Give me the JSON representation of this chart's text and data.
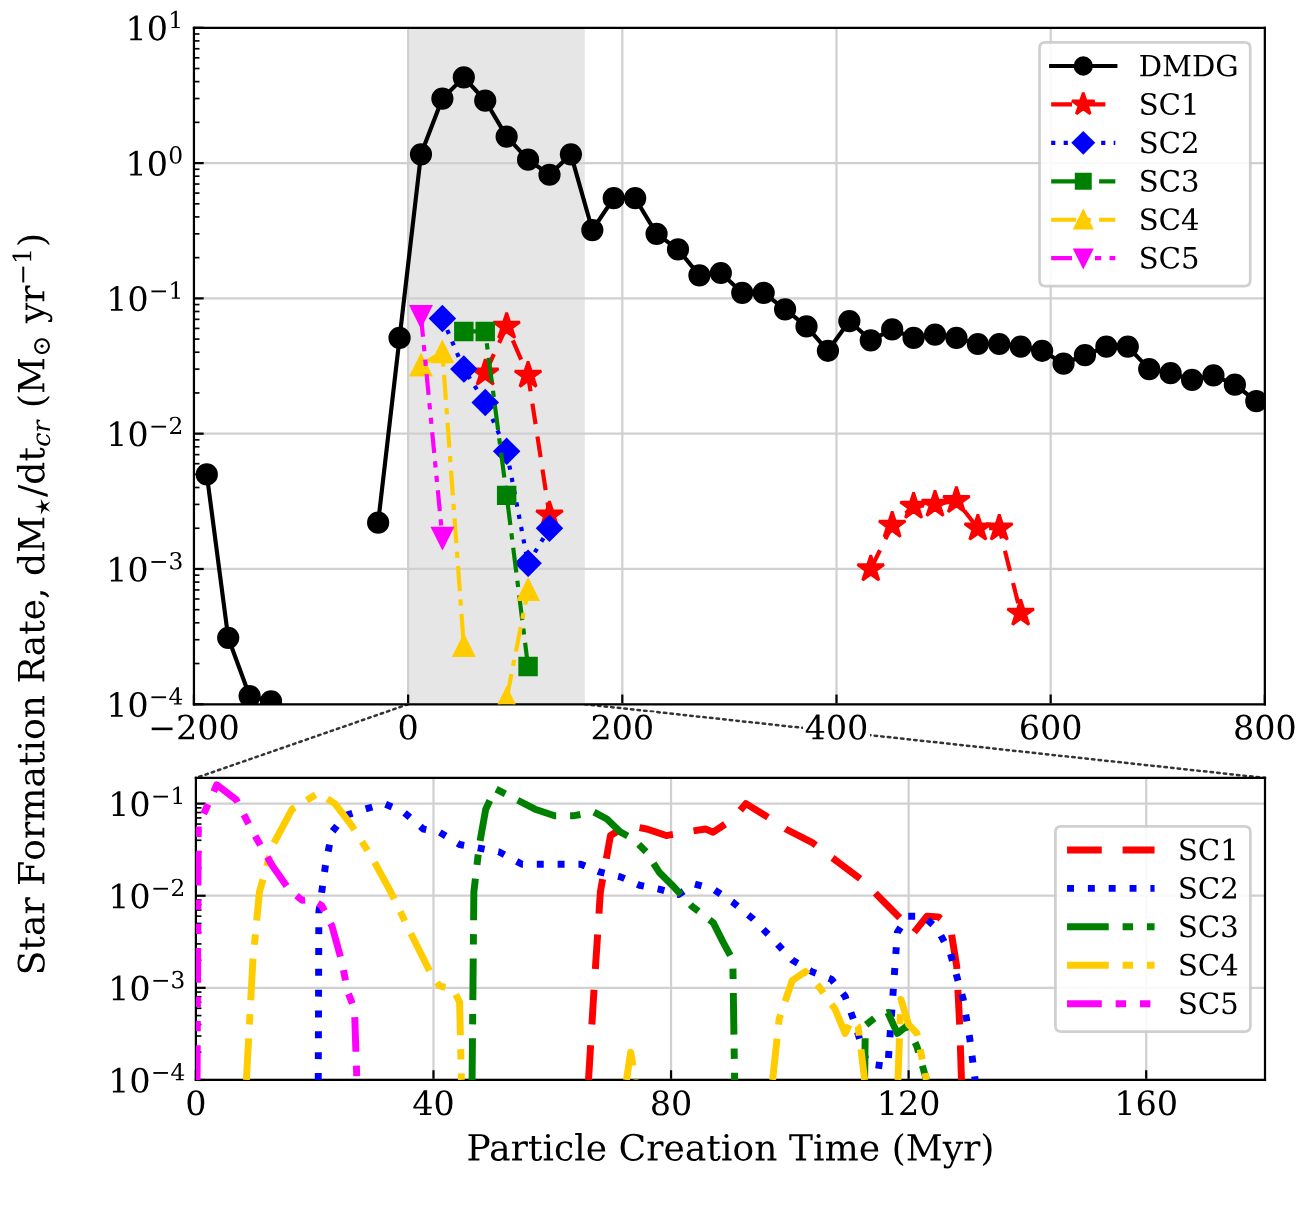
{
  "chart_data": [
    {
      "type": "line",
      "ylabel": "Star Formation Rate, dM$_{⋆}$/dt$_{cr}$ (M$_{⊙}$ yr$^{−1}$)",
      "log": "y",
      "xlim": [
        -200,
        800
      ],
      "xticks": [
        {
          "value": -200,
          "label": "−200"
        },
        0,
        200,
        400,
        600,
        800
      ],
      "ylim": [
        0.0001,
        10
      ],
      "yticks": [
        {
          "value": 0.0001,
          "label": "10$^{−4}$"
        },
        {
          "value": 0.001,
          "label": "10$^{−3}$"
        },
        {
          "value": 0.01,
          "label": "10$^{−2}$"
        },
        {
          "value": 0.1,
          "label": "10$^{−1}$"
        },
        {
          "value": 1,
          "label": "10$^{0}$"
        },
        {
          "value": 10,
          "label": "10$^{1}$"
        }
      ],
      "grid": true,
      "legend": "top right",
      "bands": [
        {
          "axis": "x",
          "from": 0,
          "to": 165,
          "color": "#e6e6e6"
        }
      ],
      "series": [
        {
          "name": "DMDG",
          "color": "#000000",
          "marker": "circle",
          "line_style": "solid",
          "x": [
            -188,
            -168,
            -148,
            -128,
            -108,
            -28,
            -8,
            12,
            32,
            52,
            72,
            92,
            112,
            132,
            152,
            172,
            192,
            212,
            232,
            252,
            272,
            292,
            312,
            332,
            352,
            372,
            392,
            412,
            432,
            452,
            472,
            492,
            512,
            532,
            552,
            572,
            592,
            612,
            632,
            652,
            672,
            692,
            712,
            732,
            752,
            772,
            792
          ],
          "values": [
            0.005,
            0.00031,
            0.000115,
            0.000105,
            null,
            0.0022,
            0.051,
            1.16,
            3.0,
            4.3,
            2.9,
            1.57,
            1.06,
            0.82,
            1.16,
            0.32,
            0.55,
            0.55,
            0.3,
            0.23,
            0.148,
            0.154,
            0.11,
            0.11,
            0.083,
            0.062,
            0.041,
            0.068,
            0.049,
            0.059,
            0.051,
            0.054,
            0.051,
            0.046,
            0.046,
            0.044,
            0.041,
            0.033,
            0.038,
            0.044,
            0.044,
            0.03,
            0.028,
            0.025,
            0.027,
            0.023,
            0.0174
          ]
        },
        {
          "name": "SC1",
          "color": "#ff0000",
          "marker": "star",
          "line_style": "dashed",
          "x": [
            72,
            92,
            112,
            132,
            282,
            432,
            452,
            472,
            492,
            512,
            532,
            552,
            572
          ],
          "values": [
            0.028,
            0.062,
            0.027,
            0.0025,
            null,
            0.001,
            0.0021,
            0.0029,
            0.003,
            0.0032,
            0.002,
            0.002,
            0.00047
          ]
        },
        {
          "name": "SC2",
          "color": "#0000ff",
          "marker": "diamond",
          "line_style": "dotted",
          "x": [
            32,
            52,
            72,
            92,
            112,
            132
          ],
          "values": [
            0.071,
            0.03,
            0.017,
            0.0074,
            0.0011,
            0.002
          ]
        },
        {
          "name": "SC3",
          "color": "#008000",
          "marker": "square",
          "line_style": "dashdot",
          "x": [
            52,
            72,
            92,
            112
          ],
          "values": [
            0.057,
            0.057,
            0.0035,
            0.00019
          ]
        },
        {
          "name": "SC4",
          "color": "#ffcc00",
          "marker": "triangle",
          "line_style": "dashdot",
          "x": [
            12,
            32,
            52,
            72,
            92,
            112
          ],
          "values": [
            0.032,
            0.04,
            0.00027,
            null,
            0.00011,
            0.0007
          ]
        },
        {
          "name": "SC5",
          "color": "#ff00ff",
          "marker": "triangle_down",
          "line_style": "dashdotdot",
          "x": [
            12,
            32
          ],
          "values": [
            0.074,
            0.0017
          ]
        }
      ]
    },
    {
      "type": "line",
      "xlabel": "Particle Creation Time (Myr)",
      "log": "y",
      "xlim": [
        0,
        180
      ],
      "xticks": [
        0,
        40,
        80,
        120,
        160
      ],
      "ylim": [
        0.0001,
        0.19
      ],
      "yticks": [
        {
          "value": 0.0001,
          "label": "10$^{−4}$"
        },
        {
          "value": 0.001,
          "label": "10$^{−3}$"
        },
        {
          "value": 0.01,
          "label": "10$^{−2}$"
        },
        {
          "value": 0.1,
          "label": "10$^{−1}$"
        }
      ],
      "grid": true,
      "legend": "right",
      "series": [
        {
          "name": "SC1",
          "color": "#ff0000",
          "line_style": "dashed",
          "x": [
            66.1,
            67,
            68.1,
            69.8,
            72.6,
            75.9,
            79.2,
            82.5,
            85.8,
            87.1,
            90.4,
            92.6,
            95.9,
            99.3,
            103.7,
            108.2,
            112.6,
            115.9,
            118.7,
            120.9,
            123.1,
            125,
            127,
            128.1,
            128.6,
            128.9
          ],
          "values": [
            0.0001,
            0.00089,
            0.011,
            0.045,
            0.058,
            0.053,
            0.045,
            0.049,
            0.053,
            0.049,
            0.068,
            0.1,
            0.074,
            0.053,
            0.038,
            0.023,
            0.014,
            0.0085,
            0.0056,
            0.004,
            0.006,
            0.0059,
            0.0047,
            0.0017,
            0.00039,
            0.0001
          ]
        },
        {
          "name": "SC2",
          "color": "#0000ff",
          "line_style": "dotted",
          "x": [
            20.6,
            20.7,
            21.8,
            22.9,
            25.1,
            28.4,
            31.7,
            35,
            38.3,
            41,
            44.4,
            51,
            54.9,
            58.2,
            64.8,
            68.1,
            71.5,
            74.7,
            78,
            81.3,
            83.8,
            87.1,
            90.4,
            93.8,
            97.1,
            100.4,
            103.7,
            107,
            109.3,
            110.9,
            113,
            116.5,
            118.1,
            119.8,
            122.5,
            124.8,
            127,
            129.2,
            130.3,
            131.2
          ],
          "values": [
            0.0001,
            0.0066,
            0.021,
            0.049,
            0.074,
            0.087,
            0.1,
            0.081,
            0.053,
            0.049,
            0.036,
            0.03,
            0.022,
            0.022,
            0.022,
            0.018,
            0.016,
            0.013,
            0.0118,
            0.0103,
            0.0135,
            0.0118,
            0.0085,
            0.0056,
            0.0034,
            0.002,
            0.0015,
            0.00124,
            0.00081,
            0.00042,
            0.00015,
            0.00014,
            0.004,
            0.006,
            0.006,
            0.0044,
            0.0024,
            0.00075,
            0.00028,
            0.0001
          ]
        },
        {
          "name": "SC3",
          "color": "#008000",
          "line_style": "dashdot",
          "x": [
            46.5,
            46.8,
            47.7,
            48.8,
            50.4,
            53.8,
            57.1,
            60.4,
            63.7,
            67,
            69.2,
            71.5,
            73.7,
            75.8,
            78,
            80.2,
            83.5,
            87.1,
            88.8,
            90.4,
            90.7,
            100,
            112.6,
            112.7,
            114.8,
            116.5,
            118.1,
            119.8,
            121.4,
            123
          ],
          "values": [
            0.0001,
            0.011,
            0.035,
            0.087,
            0.145,
            0.112,
            0.087,
            0.074,
            0.074,
            0.081,
            0.068,
            0.049,
            0.041,
            0.03,
            0.018,
            0.013,
            0.0077,
            0.0051,
            0.0031,
            0.002,
            0.0001,
            null,
            0.0001,
            0.00039,
            0.0005,
            0.00054,
            0.00032,
            0.00039,
            0.00023,
            0.0001
          ]
        },
        {
          "name": "SC4",
          "color": "#ffcc00",
          "line_style": "dashdot",
          "x": [
            8.5,
            9.6,
            10.7,
            12.9,
            16.2,
            20.6,
            23.4,
            26.2,
            29.5,
            32.8,
            36.1,
            39.4,
            41,
            43.3,
            44.4,
            44.7,
            60,
            72.5,
            73.2,
            74,
            85,
            97.1,
            98.2,
            100.4,
            102.6,
            104.8,
            107.6,
            109.3,
            110.4,
            111.5,
            112.6,
            115,
            118.2,
            118.7,
            120,
            121.4,
            123
          ],
          "values": [
            0.0001,
            0.002,
            0.011,
            0.035,
            0.087,
            0.13,
            0.1,
            0.058,
            0.027,
            0.011,
            0.004,
            0.0015,
            0.00105,
            0.00097,
            0.0007,
            0.0001,
            null,
            0.0001,
            0.0002,
            0.0001,
            null,
            0.0001,
            0.00046,
            0.0012,
            0.0015,
            0.00105,
            0.00059,
            0.00032,
            0.00045,
            0.00038,
            0.0001,
            null,
            0.0001,
            0.00075,
            0.0004,
            0.00032,
            0.0001
          ]
        },
        {
          "name": "SC5",
          "color": "#ff00ff",
          "line_style": "dashdotdot",
          "x": [
            0.2,
            0.4,
            3.5,
            6.8,
            9.6,
            12.9,
            15.7,
            17.9,
            19.5,
            21.2,
            22.9,
            24.5,
            25.6,
            26.7,
            27.1
          ],
          "values": [
            0.0001,
            0.057,
            0.16,
            0.11,
            0.049,
            0.021,
            0.0117,
            0.0089,
            0.0091,
            0.0078,
            0.0047,
            0.002,
            0.00089,
            0.00059,
            0.0001
          ]
        }
      ]
    }
  ]
}
